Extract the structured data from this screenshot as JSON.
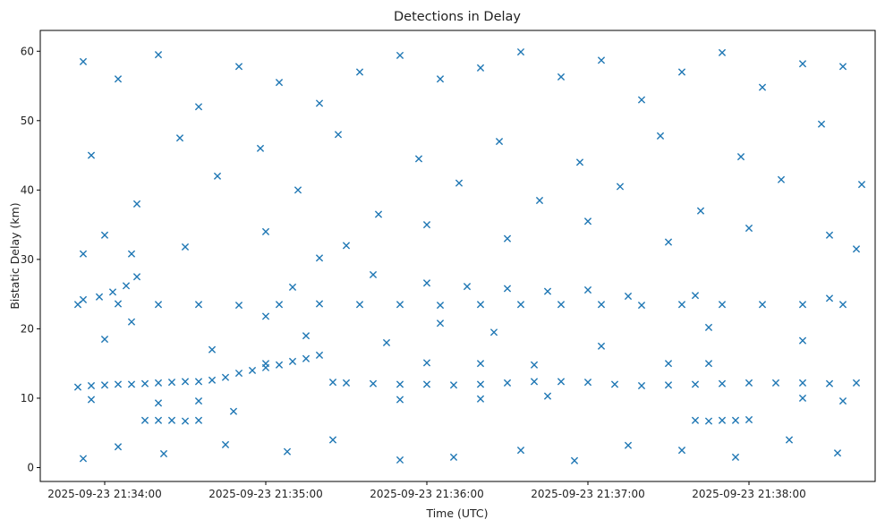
{
  "chart_data": {
    "type": "scatter",
    "title": "Detections in Delay",
    "xlabel": "Time (UTC)",
    "ylabel": "Bistatic Delay (km)",
    "marker": "x",
    "color": "#1f77b4",
    "grid": false,
    "x_unit": "UTC time",
    "xlim": [
      "2025-09-23 21:33:36",
      "2025-09-23 21:38:47"
    ],
    "ylim": [
      -2,
      63
    ],
    "x_ticks": [
      "2025-09-23 21:34:00",
      "2025-09-23 21:35:00",
      "2025-09-23 21:36:00",
      "2025-09-23 21:37:00",
      "2025-09-23 21:38:00"
    ],
    "y_ticks": [
      0,
      10,
      20,
      30,
      40,
      50,
      60
    ],
    "series": [
      {
        "name": "",
        "points": [
          [
            "2025-09-23 21:33:50",
            11.6
          ],
          [
            "2025-09-23 21:33:55",
            11.8
          ],
          [
            "2025-09-23 21:34:00",
            11.9
          ],
          [
            "2025-09-23 21:34:05",
            12.0
          ],
          [
            "2025-09-23 21:34:10",
            12.0
          ],
          [
            "2025-09-23 21:34:15",
            12.1
          ],
          [
            "2025-09-23 21:34:20",
            12.2
          ],
          [
            "2025-09-23 21:34:25",
            12.3
          ],
          [
            "2025-09-23 21:34:30",
            12.4
          ],
          [
            "2025-09-23 21:34:35",
            12.4
          ],
          [
            "2025-09-23 21:34:40",
            12.6
          ],
          [
            "2025-09-23 21:34:45",
            13.0
          ],
          [
            "2025-09-23 21:34:50",
            13.6
          ],
          [
            "2025-09-23 21:34:55",
            14.0
          ],
          [
            "2025-09-23 21:35:00",
            14.4
          ],
          [
            "2025-09-23 21:35:05",
            14.8
          ],
          [
            "2025-09-23 21:35:10",
            15.3
          ],
          [
            "2025-09-23 21:35:15",
            15.7
          ],
          [
            "2025-09-23 21:35:20",
            16.2
          ],
          [
            "2025-09-23 21:35:25",
            12.3
          ],
          [
            "2025-09-23 21:35:30",
            12.2
          ],
          [
            "2025-09-23 21:35:40",
            12.1
          ],
          [
            "2025-09-23 21:35:50",
            12.0
          ],
          [
            "2025-09-23 21:36:00",
            12.0
          ],
          [
            "2025-09-23 21:36:10",
            11.9
          ],
          [
            "2025-09-23 21:36:20",
            12.0
          ],
          [
            "2025-09-23 21:36:30",
            12.2
          ],
          [
            "2025-09-23 21:36:40",
            12.4
          ],
          [
            "2025-09-23 21:36:50",
            12.4
          ],
          [
            "2025-09-23 21:37:00",
            12.3
          ],
          [
            "2025-09-23 21:37:10",
            12.0
          ],
          [
            "2025-09-23 21:37:20",
            11.8
          ],
          [
            "2025-09-23 21:37:30",
            11.9
          ],
          [
            "2025-09-23 21:37:40",
            12.0
          ],
          [
            "2025-09-23 21:37:50",
            12.1
          ],
          [
            "2025-09-23 21:38:00",
            12.2
          ],
          [
            "2025-09-23 21:38:10",
            12.2
          ],
          [
            "2025-09-23 21:38:20",
            12.2
          ],
          [
            "2025-09-23 21:38:30",
            12.1
          ],
          [
            "2025-09-23 21:38:40",
            12.2
          ],
          [
            "2025-09-23 21:33:50",
            23.5
          ],
          [
            "2025-09-23 21:34:05",
            23.6
          ],
          [
            "2025-09-23 21:34:20",
            23.5
          ],
          [
            "2025-09-23 21:34:35",
            23.5
          ],
          [
            "2025-09-23 21:34:50",
            23.4
          ],
          [
            "2025-09-23 21:35:05",
            23.5
          ],
          [
            "2025-09-23 21:35:20",
            23.6
          ],
          [
            "2025-09-23 21:35:35",
            23.5
          ],
          [
            "2025-09-23 21:35:50",
            23.5
          ],
          [
            "2025-09-23 21:36:05",
            23.4
          ],
          [
            "2025-09-23 21:36:20",
            23.5
          ],
          [
            "2025-09-23 21:36:35",
            23.5
          ],
          [
            "2025-09-23 21:36:50",
            23.5
          ],
          [
            "2025-09-23 21:37:05",
            23.5
          ],
          [
            "2025-09-23 21:37:20",
            23.4
          ],
          [
            "2025-09-23 21:37:35",
            23.5
          ],
          [
            "2025-09-23 21:37:50",
            23.5
          ],
          [
            "2025-09-23 21:38:05",
            23.5
          ],
          [
            "2025-09-23 21:38:20",
            23.5
          ],
          [
            "2025-09-23 21:38:35",
            23.5
          ],
          [
            "2025-09-23 21:33:52",
            24.2
          ],
          [
            "2025-09-23 21:33:58",
            24.6
          ],
          [
            "2025-09-23 21:34:03",
            25.3
          ],
          [
            "2025-09-23 21:34:08",
            26.2
          ],
          [
            "2025-09-23 21:34:12",
            27.5
          ],
          [
            "2025-09-23 21:35:10",
            26.0
          ],
          [
            "2025-09-23 21:35:40",
            27.8
          ],
          [
            "2025-09-23 21:36:00",
            26.6
          ],
          [
            "2025-09-23 21:36:15",
            26.1
          ],
          [
            "2025-09-23 21:36:30",
            25.8
          ],
          [
            "2025-09-23 21:36:45",
            25.4
          ],
          [
            "2025-09-23 21:37:00",
            25.6
          ],
          [
            "2025-09-23 21:37:15",
            24.7
          ],
          [
            "2025-09-23 21:37:40",
            24.8
          ],
          [
            "2025-09-23 21:38:30",
            24.4
          ],
          [
            "2025-09-23 21:34:15",
            6.8
          ],
          [
            "2025-09-23 21:34:20",
            6.8
          ],
          [
            "2025-09-23 21:34:25",
            6.8
          ],
          [
            "2025-09-23 21:34:30",
            6.7
          ],
          [
            "2025-09-23 21:34:35",
            6.8
          ],
          [
            "2025-09-23 21:37:40",
            6.8
          ],
          [
            "2025-09-23 21:37:45",
            6.7
          ],
          [
            "2025-09-23 21:37:50",
            6.8
          ],
          [
            "2025-09-23 21:37:55",
            6.8
          ],
          [
            "2025-09-23 21:38:00",
            6.9
          ],
          [
            "2025-09-23 21:34:20",
            9.3
          ],
          [
            "2025-09-23 21:34:35",
            9.6
          ],
          [
            "2025-09-23 21:35:50",
            9.8
          ],
          [
            "2025-09-23 21:36:20",
            9.9
          ],
          [
            "2025-09-23 21:36:45",
            10.3
          ],
          [
            "2025-09-23 21:38:20",
            10.0
          ],
          [
            "2025-09-23 21:38:35",
            9.6
          ],
          [
            "2025-09-23 21:33:55",
            9.8
          ],
          [
            "2025-09-23 21:34:48",
            8.1
          ],
          [
            "2025-09-23 21:36:40",
            14.8
          ],
          [
            "2025-09-23 21:35:00",
            15.0
          ],
          [
            "2025-09-23 21:36:00",
            15.1
          ],
          [
            "2025-09-23 21:36:20",
            15.0
          ],
          [
            "2025-09-23 21:37:30",
            15.0
          ],
          [
            "2025-09-23 21:37:45",
            15.0
          ],
          [
            "2025-09-23 21:34:10",
            21.0
          ],
          [
            "2025-09-23 21:35:20",
            30.2
          ],
          [
            "2025-09-23 21:33:52",
            30.8
          ],
          [
            "2025-09-23 21:34:10",
            30.8
          ],
          [
            "2025-09-23 21:38:40",
            31.5
          ],
          [
            "2025-09-23 21:33:52",
            58.5
          ],
          [
            "2025-09-23 21:34:05",
            56.0
          ],
          [
            "2025-09-23 21:34:20",
            59.5
          ],
          [
            "2025-09-23 21:34:35",
            52.0
          ],
          [
            "2025-09-23 21:34:50",
            57.8
          ],
          [
            "2025-09-23 21:35:05",
            55.5
          ],
          [
            "2025-09-23 21:35:20",
            52.5
          ],
          [
            "2025-09-23 21:35:35",
            57.0
          ],
          [
            "2025-09-23 21:35:50",
            59.4
          ],
          [
            "2025-09-23 21:36:05",
            56.0
          ],
          [
            "2025-09-23 21:36:20",
            57.6
          ],
          [
            "2025-09-23 21:36:35",
            59.9
          ],
          [
            "2025-09-23 21:36:50",
            56.3
          ],
          [
            "2025-09-23 21:37:05",
            58.7
          ],
          [
            "2025-09-23 21:37:20",
            53.0
          ],
          [
            "2025-09-23 21:37:35",
            57.0
          ],
          [
            "2025-09-23 21:37:50",
            59.8
          ],
          [
            "2025-09-23 21:38:05",
            54.8
          ],
          [
            "2025-09-23 21:38:20",
            58.2
          ],
          [
            "2025-09-23 21:38:35",
            57.8
          ],
          [
            "2025-09-23 21:33:55",
            45.0
          ],
          [
            "2025-09-23 21:34:12",
            38.0
          ],
          [
            "2025-09-23 21:34:28",
            47.5
          ],
          [
            "2025-09-23 21:34:42",
            42.0
          ],
          [
            "2025-09-23 21:34:58",
            46.0
          ],
          [
            "2025-09-23 21:35:12",
            40.0
          ],
          [
            "2025-09-23 21:35:27",
            48.0
          ],
          [
            "2025-09-23 21:35:42",
            36.5
          ],
          [
            "2025-09-23 21:35:57",
            44.5
          ],
          [
            "2025-09-23 21:36:12",
            41.0
          ],
          [
            "2025-09-23 21:36:27",
            47.0
          ],
          [
            "2025-09-23 21:36:42",
            38.5
          ],
          [
            "2025-09-23 21:36:57",
            44.0
          ],
          [
            "2025-09-23 21:37:12",
            40.5
          ],
          [
            "2025-09-23 21:37:27",
            47.8
          ],
          [
            "2025-09-23 21:37:42",
            37.0
          ],
          [
            "2025-09-23 21:37:57",
            44.8
          ],
          [
            "2025-09-23 21:38:12",
            41.5
          ],
          [
            "2025-09-23 21:38:27",
            49.5
          ],
          [
            "2025-09-23 21:38:42",
            40.8
          ],
          [
            "2025-09-23 21:34:00",
            33.5
          ],
          [
            "2025-09-23 21:34:30",
            31.8
          ],
          [
            "2025-09-23 21:35:00",
            34.0
          ],
          [
            "2025-09-23 21:35:30",
            32.0
          ],
          [
            "2025-09-23 21:36:00",
            35.0
          ],
          [
            "2025-09-23 21:36:30",
            33.0
          ],
          [
            "2025-09-23 21:37:00",
            35.5
          ],
          [
            "2025-09-23 21:37:30",
            32.5
          ],
          [
            "2025-09-23 21:38:00",
            34.5
          ],
          [
            "2025-09-23 21:38:30",
            33.5
          ],
          [
            "2025-09-23 21:33:52",
            1.3
          ],
          [
            "2025-09-23 21:34:05",
            3.0
          ],
          [
            "2025-09-23 21:34:22",
            2.0
          ],
          [
            "2025-09-23 21:34:45",
            3.3
          ],
          [
            "2025-09-23 21:35:08",
            2.3
          ],
          [
            "2025-09-23 21:35:25",
            4.0
          ],
          [
            "2025-09-23 21:35:50",
            1.1
          ],
          [
            "2025-09-23 21:36:10",
            1.5
          ],
          [
            "2025-09-23 21:36:35",
            2.5
          ],
          [
            "2025-09-23 21:36:55",
            1.0
          ],
          [
            "2025-09-23 21:37:15",
            3.2
          ],
          [
            "2025-09-23 21:37:35",
            2.5
          ],
          [
            "2025-09-23 21:37:55",
            1.5
          ],
          [
            "2025-09-23 21:38:15",
            4.0
          ],
          [
            "2025-09-23 21:38:33",
            2.1
          ],
          [
            "2025-09-23 21:34:00",
            18.5
          ],
          [
            "2025-09-23 21:34:40",
            17.0
          ],
          [
            "2025-09-23 21:35:15",
            19.0
          ],
          [
            "2025-09-23 21:35:45",
            18.0
          ],
          [
            "2025-09-23 21:36:25",
            19.5
          ],
          [
            "2025-09-23 21:37:05",
            17.5
          ],
          [
            "2025-09-23 21:37:45",
            20.2
          ],
          [
            "2025-09-23 21:38:20",
            18.3
          ],
          [
            "2025-09-23 21:36:05",
            20.8
          ],
          [
            "2025-09-23 21:35:00",
            21.8
          ]
        ]
      }
    ]
  }
}
